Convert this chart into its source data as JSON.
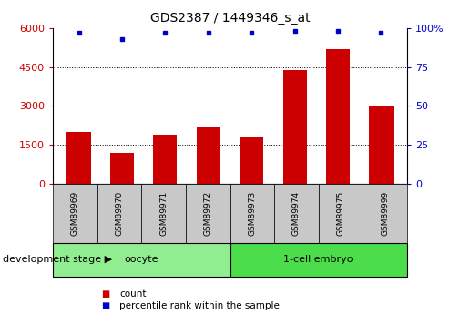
{
  "title": "GDS2387 / 1449346_s_at",
  "samples": [
    "GSM89969",
    "GSM89970",
    "GSM89971",
    "GSM89972",
    "GSM89973",
    "GSM89974",
    "GSM89975",
    "GSM89999"
  ],
  "counts": [
    2000,
    1200,
    1900,
    2200,
    1800,
    4400,
    5200,
    3000
  ],
  "percentile": [
    97,
    93,
    97,
    97,
    97,
    98,
    98,
    97
  ],
  "groups": [
    {
      "label": "oocyte",
      "indices": [
        0,
        1,
        2,
        3
      ],
      "color": "#90EE90"
    },
    {
      "label": "1-cell embryo",
      "indices": [
        4,
        5,
        6,
        7
      ],
      "color": "#4CDD4C"
    }
  ],
  "bar_color": "#CC0000",
  "dot_color": "#0000CC",
  "ylim_left": [
    0,
    6000
  ],
  "ylim_right": [
    0,
    100
  ],
  "yticks_left": [
    0,
    1500,
    3000,
    4500,
    6000
  ],
  "yticks_right": [
    0,
    25,
    50,
    75,
    100
  ],
  "grid_values": [
    1500,
    3000,
    4500
  ],
  "tick_area_color": "#c8c8c8",
  "legend_count_label": "count",
  "legend_pct_label": "percentile rank within the sample",
  "dev_stage_label": "development stage",
  "arrow_char": "▶"
}
